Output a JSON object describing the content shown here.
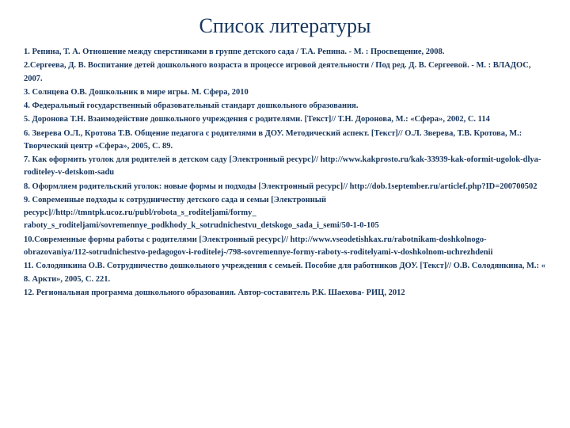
{
  "title": "Список литературы",
  "references": [
    "1. Репина, Т. А. Отношение между сверстниками в группе детского сада / Т.А. Репина. - М. : Просвещение, 2008.",
    "2.Сергеева, Д. В. Воспитание детей дошкольного возраста в процессе игровой деятельности / Под ред. Д. В. Сергеевой. - М. : ВЛАДОС, 2007.",
    "3. Солнцева О.В. Дошкольник в мире игры. М. Сфера, 2010",
    "4. Федеральный государственный образовательный стандарт дошкольного образования.",
    "5. Доронова Т.Н. Взаимодействие дошкольного учреждения с родителями. [Текст]// Т.Н. Доронова, М.: «Сфера», 2002, С. 114",
    "6. Зверева О.Л., Кротова Т.В. Общение педагога с родителями в ДОУ. Методический аспект. [Текст]// О.Л. Зверева, Т.В. Кротова, М.: Творческий центр «Сфера», 2005, С. 89.",
    "7. Как оформить уголок для родителей в детском саду [Электронный ресурс]// http://www.kakprosto.ru/kak-33939-kak-oformit-ugolok-dlya-roditeley-v-detskom-sadu",
    "8. Оформляем родительский уголок: новые формы и подходы [Электронный ресурс]// http://dob.1september.ru/articlef.php?ID=200700502",
    "9. Современные подходы к сотрудничеству детского сада и семьи [Электронный ресурс]//http://tmntpk.ucoz.ru/publ/robota_s_roditeljami/formy_ raboty_s_roditeljami/sovremennye_podkhody_k_sotrudnichestvu_detskogo_sada_i_semi/50-1-0-105",
    "10.Современные формы работы с родителями [Электронный ресурс]// http://www.vseodetishkax.ru/rabotnikam-doshkolnogo-obrazovaniya/112-sotrudnichestvo-pedagogov-i-roditelej-/798-sovremennye-formy-raboty-s-roditelyami-v-doshkolnom-uchrezhdenii",
    "11. Солодянкина О.В. Сотрудничество дошкольного учреждения с семьей. Пособие для работников ДОУ. [Текст]// О.В. Солодянкина, М.: « 8. Аркти», 2005, С. 221.",
    "12. Региональная программа дошкольного образования. Автор-составитель Р.К. Шаехова- РИЦ, 2012"
  ],
  "colors": {
    "text": "#17365d",
    "background": "#ffffff"
  },
  "typography": {
    "title_fontsize": 26,
    "body_fontsize": 10.5,
    "font_family": "Times New Roman"
  }
}
